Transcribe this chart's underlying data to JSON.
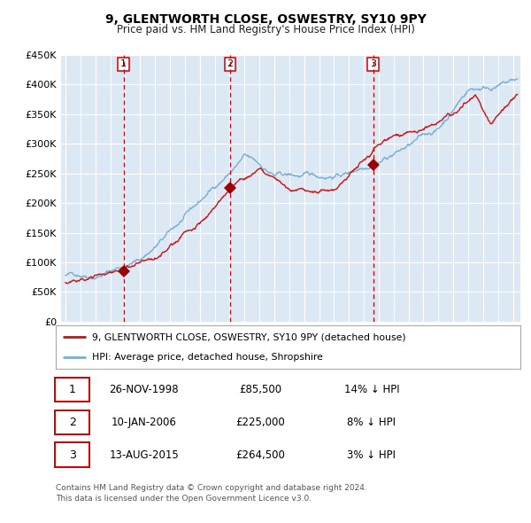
{
  "title": "9, GLENTWORTH CLOSE, OSWESTRY, SY10 9PY",
  "subtitle": "Price paid vs. HM Land Registry's House Price Index (HPI)",
  "background_color": "#ffffff",
  "plot_bg_color": "#dce9f5",
  "grid_color": "#ffffff",
  "ylim": [
    0,
    450000
  ],
  "yticks": [
    0,
    50000,
    100000,
    150000,
    200000,
    250000,
    300000,
    350000,
    400000,
    450000
  ],
  "ytick_labels": [
    "£0",
    "£50K",
    "£100K",
    "£150K",
    "£200K",
    "£250K",
    "£300K",
    "£350K",
    "£400K",
    "£450K"
  ],
  "xlim_start": 1994.7,
  "xlim_end": 2025.5,
  "sale_dates": [
    1998.9,
    2006.03,
    2015.62
  ],
  "sale_prices": [
    85500,
    225000,
    264500
  ],
  "sale_labels": [
    "1",
    "2",
    "3"
  ],
  "vline_color": "#cc0000",
  "sale_marker_color": "#990000",
  "red_line_color": "#cc1111",
  "blue_line_color": "#7aadd4",
  "legend_label_red": "9, GLENTWORTH CLOSE, OSWESTRY, SY10 9PY (detached house)",
  "legend_label_blue": "HPI: Average price, detached house, Shropshire",
  "table_entries": [
    {
      "num": "1",
      "date": "26-NOV-1998",
      "price": "£85,500",
      "pct": "14% ↓ HPI"
    },
    {
      "num": "2",
      "date": "10-JAN-2006",
      "price": "£225,000",
      "pct": "8% ↓ HPI"
    },
    {
      "num": "3",
      "date": "13-AUG-2015",
      "price": "£264,500",
      "pct": "3% ↓ HPI"
    }
  ],
  "footnote": "Contains HM Land Registry data © Crown copyright and database right 2024.\nThis data is licensed under the Open Government Licence v3.0."
}
